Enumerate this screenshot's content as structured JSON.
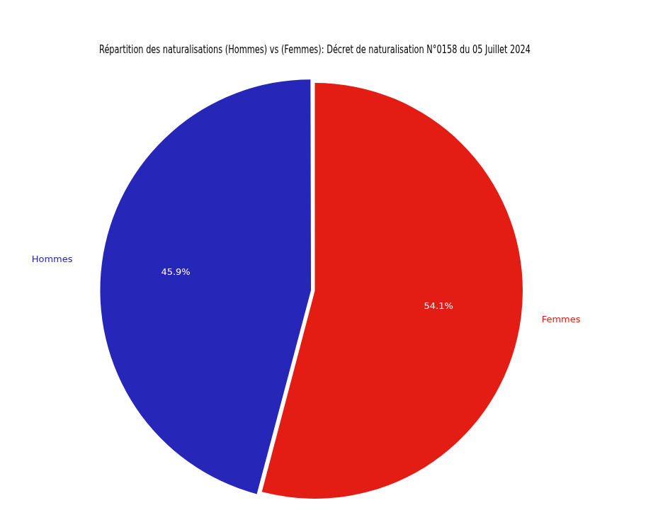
{
  "chart_data": {
    "type": "pie",
    "title": "Répartition des naturalisations (Hommes) vs (Femmes): Décret de naturalisation N°0158 du 05 Juillet 2024",
    "categories": [
      "Hommes",
      "Femmes"
    ],
    "values": [
      45.9,
      54.1
    ],
    "value_labels": [
      "45.9%",
      "54.1%"
    ],
    "colors": [
      "#2626b9",
      "#e31d14"
    ],
    "data_labels": true,
    "legend": false
  }
}
